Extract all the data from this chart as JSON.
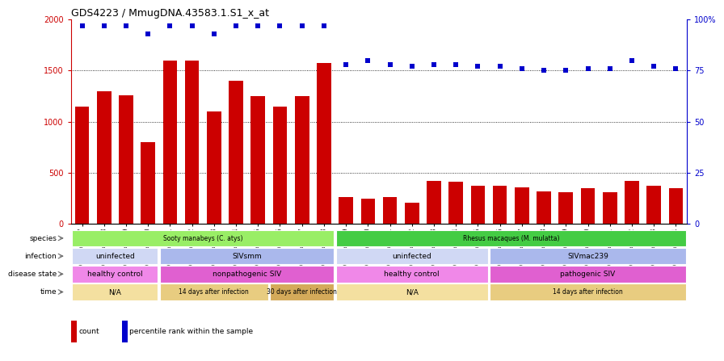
{
  "title": "GDS4223 / MmugDNA.43583.1.S1_x_at",
  "samples": [
    "GSM440057",
    "GSM440058",
    "GSM440059",
    "GSM440060",
    "GSM440061",
    "GSM440062",
    "GSM440063",
    "GSM440064",
    "GSM440065",
    "GSM440066",
    "GSM440067",
    "GSM440068",
    "GSM440069",
    "GSM440070",
    "GSM440071",
    "GSM440072",
    "GSM440073",
    "GSM440074",
    "GSM440075",
    "GSM440076",
    "GSM440077",
    "GSM440078",
    "GSM440079",
    "GSM440080",
    "GSM440081",
    "GSM440082",
    "GSM440083",
    "GSM440084"
  ],
  "counts": [
    1150,
    1300,
    1260,
    800,
    1600,
    1600,
    1100,
    1400,
    1250,
    1150,
    1250,
    1570,
    260,
    250,
    260,
    210,
    420,
    410,
    370,
    370,
    360,
    320,
    310,
    350,
    310,
    420,
    370,
    350
  ],
  "percentiles": [
    97,
    97,
    97,
    93,
    97,
    97,
    93,
    97,
    97,
    97,
    97,
    97,
    78,
    80,
    78,
    77,
    78,
    78,
    77,
    77,
    76,
    75,
    75,
    76,
    76,
    80,
    77,
    76
  ],
  "bar_color": "#cc0000",
  "dot_color": "#0000cc",
  "ylim_left": [
    0,
    2000
  ],
  "ylim_right": [
    0,
    100
  ],
  "yticks_left": [
    0,
    500,
    1000,
    1500,
    2000
  ],
  "yticks_right": [
    0,
    25,
    50,
    75,
    100
  ],
  "ytick_right_labels": [
    "0",
    "25",
    "50",
    "75",
    "100%"
  ],
  "annotation_rows": [
    {
      "label": "species",
      "segments": [
        {
          "text": "Sooty manabeys (C. atys)",
          "start": 0,
          "end": 12,
          "color": "#99ee66"
        },
        {
          "text": "Rhesus macaques (M. mulatta)",
          "start": 12,
          "end": 28,
          "color": "#44cc44"
        }
      ]
    },
    {
      "label": "infection",
      "segments": [
        {
          "text": "uninfected",
          "start": 0,
          "end": 4,
          "color": "#d0d8f4"
        },
        {
          "text": "SIVsmm",
          "start": 4,
          "end": 12,
          "color": "#aab8ec"
        },
        {
          "text": "uninfected",
          "start": 12,
          "end": 19,
          "color": "#d0d8f4"
        },
        {
          "text": "SIVmac239",
          "start": 19,
          "end": 28,
          "color": "#aab8ec"
        }
      ]
    },
    {
      "label": "disease state",
      "segments": [
        {
          "text": "healthy control",
          "start": 0,
          "end": 4,
          "color": "#f088e8"
        },
        {
          "text": "nonpathogenic SIV",
          "start": 4,
          "end": 12,
          "color": "#e060d0"
        },
        {
          "text": "healthy control",
          "start": 12,
          "end": 19,
          "color": "#f088e8"
        },
        {
          "text": "pathogenic SIV",
          "start": 19,
          "end": 28,
          "color": "#e060d0"
        }
      ]
    },
    {
      "label": "time",
      "segments": [
        {
          "text": "N/A",
          "start": 0,
          "end": 4,
          "color": "#f4e0a0"
        },
        {
          "text": "14 days after infection",
          "start": 4,
          "end": 9,
          "color": "#e8cc80"
        },
        {
          "text": "30 days after infection",
          "start": 9,
          "end": 12,
          "color": "#d4aa5a"
        },
        {
          "text": "N/A",
          "start": 12,
          "end": 19,
          "color": "#f4e0a0"
        },
        {
          "text": "14 days after infection",
          "start": 19,
          "end": 28,
          "color": "#e8cc80"
        }
      ]
    }
  ],
  "legend_items": [
    {
      "label": "count",
      "color": "#cc0000"
    },
    {
      "label": "percentile rank within the sample",
      "color": "#0000cc"
    }
  ]
}
